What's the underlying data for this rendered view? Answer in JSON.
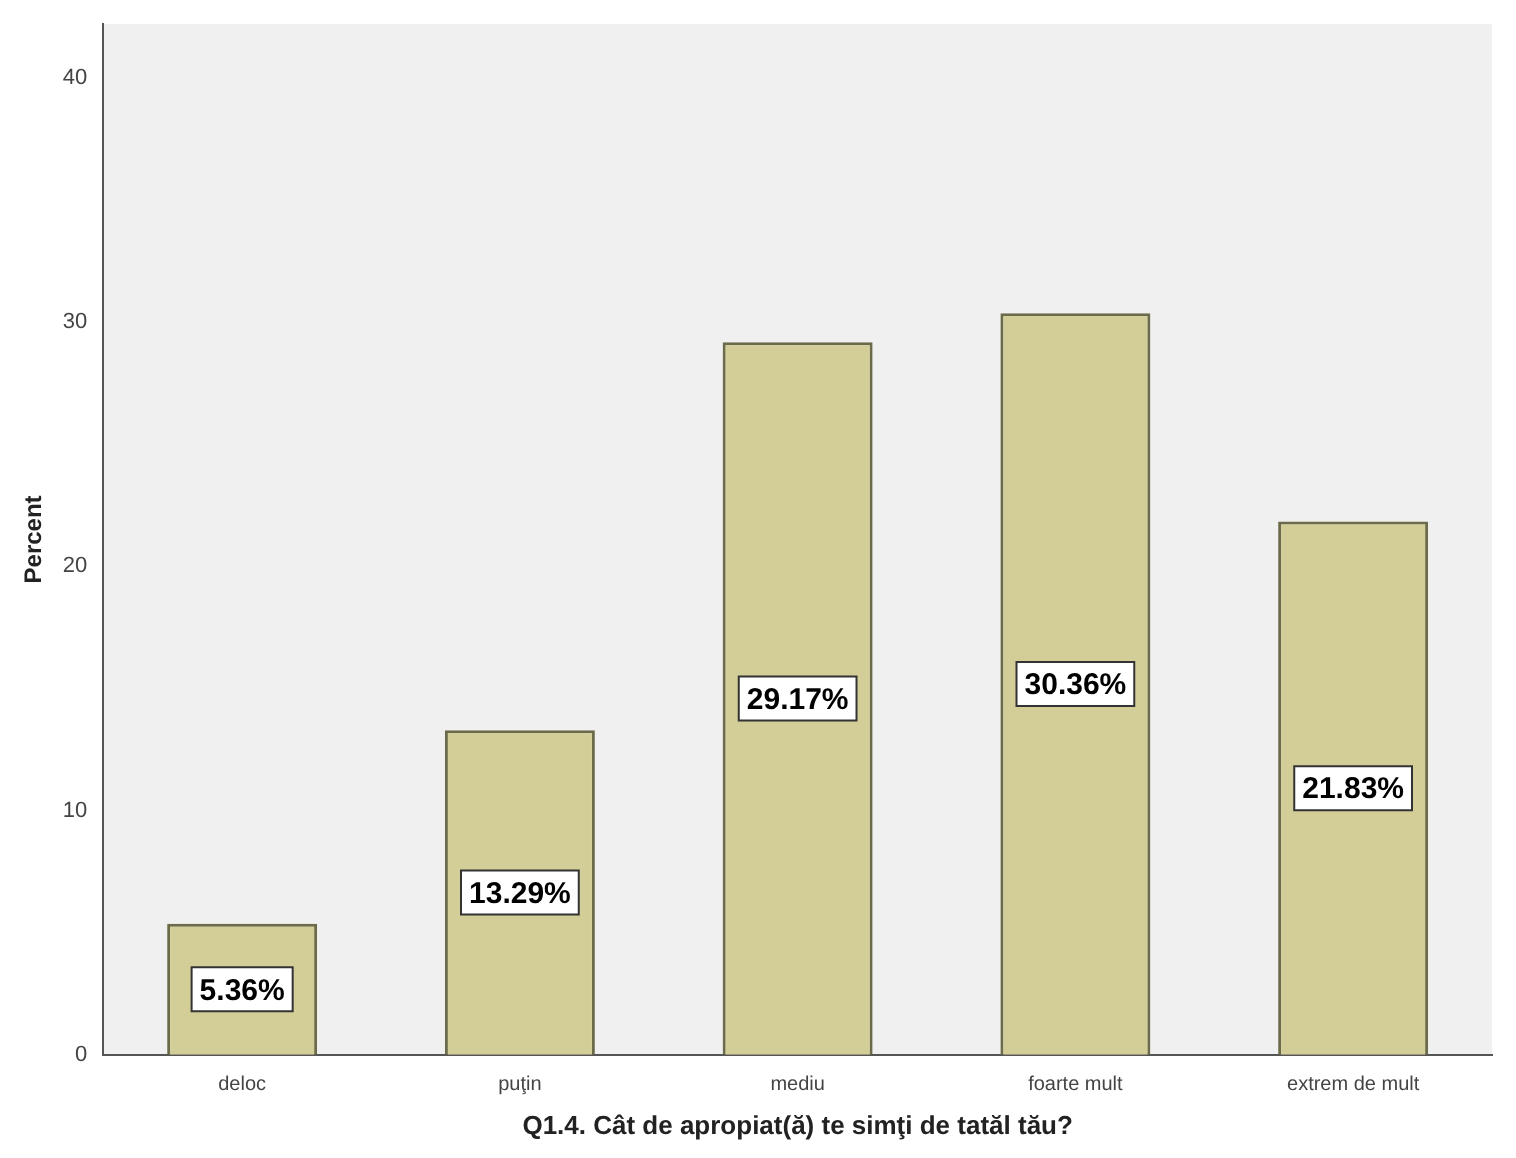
{
  "chart_data": {
    "type": "bar",
    "xlabel": "Q1.4. Cât de apropiat(ă) te simţi de tatăl tău?",
    "ylabel": "Percent",
    "categories": [
      "deloc",
      "puţin",
      "mediu",
      "foarte mult",
      "extrem de mult"
    ],
    "values": [
      5.36,
      13.29,
      29.17,
      30.36,
      21.83
    ],
    "value_labels": [
      "5.36%",
      "13.29%",
      "29.17%",
      "30.36%",
      "21.83%"
    ],
    "color": "#d3ce97",
    "ylim": [
      0,
      42.2
    ],
    "yticks": [
      0,
      10,
      20,
      30,
      40
    ],
    "grid": false,
    "legend": false
  }
}
